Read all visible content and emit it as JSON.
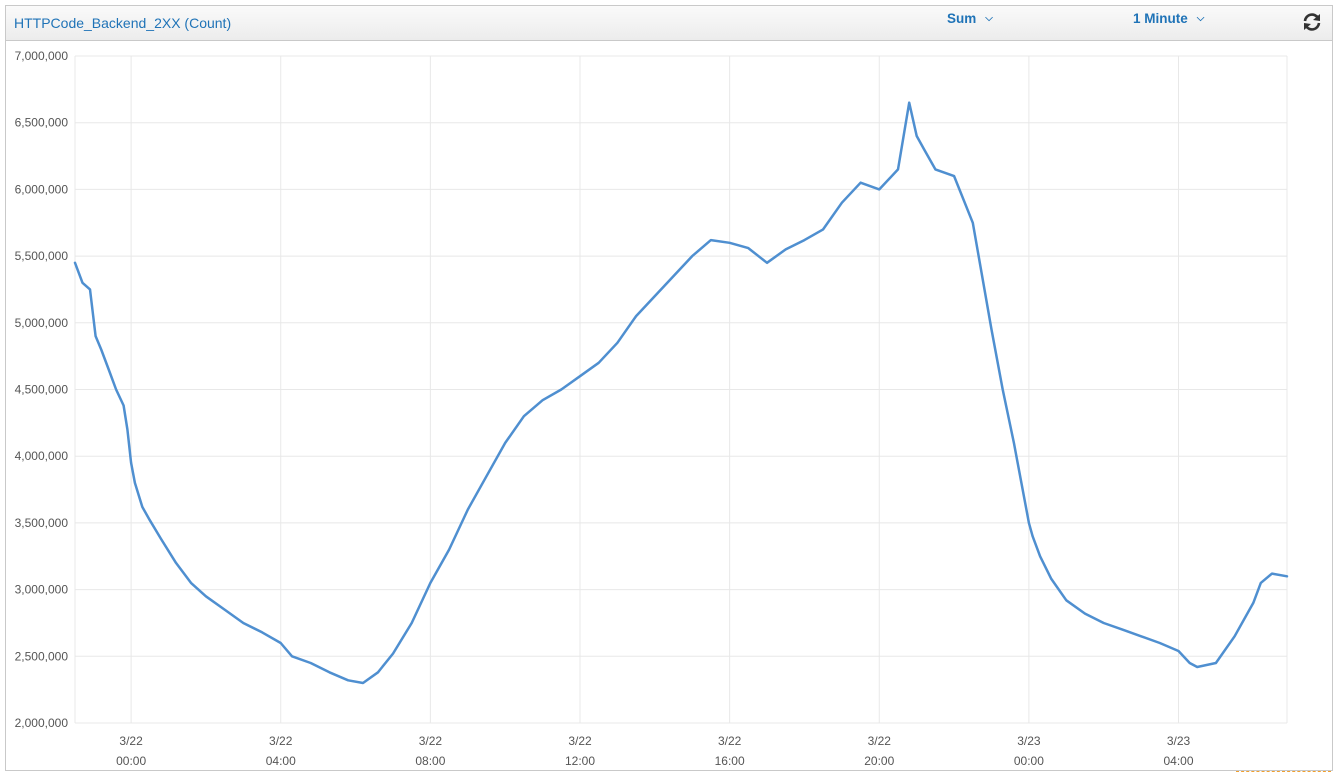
{
  "header": {
    "metric_title": "HTTPCode_Backend_2XX (Count)",
    "statistic_label": "Sum",
    "period_label": "1 Minute",
    "refresh_icon": "refresh-icon"
  },
  "colors": {
    "line": "#4f8fd0",
    "grid": "#e8e8e8",
    "link": "#1f73b7"
  },
  "chart_data": {
    "type": "line",
    "title": "HTTPCode_Backend_2XX (Count)",
    "xlabel": "",
    "ylabel": "",
    "ylim": [
      2000000,
      7000000
    ],
    "xlim_hours": [
      -1.5,
      30.9
    ],
    "grid": true,
    "legend": "none",
    "y_ticks": [
      {
        "value": 7000000,
        "label": "7,000,000"
      },
      {
        "value": 6500000,
        "label": "6,500,000"
      },
      {
        "value": 6000000,
        "label": "6,000,000"
      },
      {
        "value": 5500000,
        "label": "5,500,000"
      },
      {
        "value": 5000000,
        "label": "5,000,000"
      },
      {
        "value": 4500000,
        "label": "4,500,000"
      },
      {
        "value": 4000000,
        "label": "4,000,000"
      },
      {
        "value": 3500000,
        "label": "3,500,000"
      },
      {
        "value": 3000000,
        "label": "3,000,000"
      },
      {
        "value": 2500000,
        "label": "2,500,000"
      },
      {
        "value": 2000000,
        "label": "2,000,000"
      }
    ],
    "x_ticks": [
      {
        "hour": 0,
        "date": "3/22",
        "time": "00:00"
      },
      {
        "hour": 4,
        "date": "3/22",
        "time": "04:00"
      },
      {
        "hour": 8,
        "date": "3/22",
        "time": "08:00"
      },
      {
        "hour": 12,
        "date": "3/22",
        "time": "12:00"
      },
      {
        "hour": 16,
        "date": "3/22",
        "time": "16:00"
      },
      {
        "hour": 20,
        "date": "3/22",
        "time": "20:00"
      },
      {
        "hour": 24,
        "date": "3/23",
        "time": "00:00"
      },
      {
        "hour": 28,
        "date": "3/23",
        "time": "04:00"
      }
    ],
    "series": [
      {
        "x_hours": [
          -1.5,
          -1.3,
          -1.1,
          -0.95,
          -0.8,
          -0.6,
          -0.4,
          -0.2,
          -0.1,
          0.0,
          0.1,
          0.3,
          0.5,
          0.8,
          1.2,
          1.6,
          2.0,
          2.5,
          3.0,
          3.5,
          4.0,
          4.3,
          4.8,
          5.3,
          5.8,
          6.2,
          6.6,
          7.0,
          7.5,
          8.0,
          8.5,
          9.0,
          9.5,
          10.0,
          10.5,
          11.0,
          11.5,
          12.0,
          12.5,
          13.0,
          13.5,
          14.0,
          14.5,
          15.0,
          15.5,
          16.0,
          16.5,
          17.0,
          17.5,
          18.0,
          18.5,
          19.0,
          19.5,
          20.0,
          20.5,
          20.8,
          21.0,
          21.2,
          21.5,
          22.0,
          22.5,
          23.0,
          23.3,
          23.6,
          23.8,
          24.0,
          24.1,
          24.3,
          24.6,
          25.0,
          25.5,
          26.0,
          26.5,
          27.0,
          27.5,
          28.0,
          28.3,
          28.5,
          29.0,
          29.5,
          30.0,
          30.2,
          30.5,
          30.9
        ],
        "values": [
          5450000,
          5300000,
          5250000,
          4900000,
          4800000,
          4650000,
          4500000,
          4380000,
          4200000,
          3950000,
          3800000,
          3620000,
          3520000,
          3380000,
          3200000,
          3050000,
          2950000,
          2850000,
          2750000,
          2680000,
          2600000,
          2500000,
          2450000,
          2380000,
          2320000,
          2300000,
          2380000,
          2520000,
          2750000,
          3050000,
          3300000,
          3600000,
          3850000,
          4100000,
          4300000,
          4420000,
          4500000,
          4600000,
          4700000,
          4850000,
          5050000,
          5200000,
          5350000,
          5500000,
          5620000,
          5600000,
          5560000,
          5450000,
          5550000,
          5620000,
          5700000,
          5900000,
          6050000,
          6000000,
          6150000,
          6650000,
          6400000,
          6300000,
          6150000,
          6100000,
          5750000,
          4950000,
          4500000,
          4100000,
          3800000,
          3500000,
          3400000,
          3250000,
          3080000,
          2920000,
          2820000,
          2750000,
          2700000,
          2650000,
          2600000,
          2540000,
          2450000,
          2420000,
          2450000,
          2650000,
          2900000,
          3050000,
          3120000,
          3100000
        ]
      }
    ]
  }
}
